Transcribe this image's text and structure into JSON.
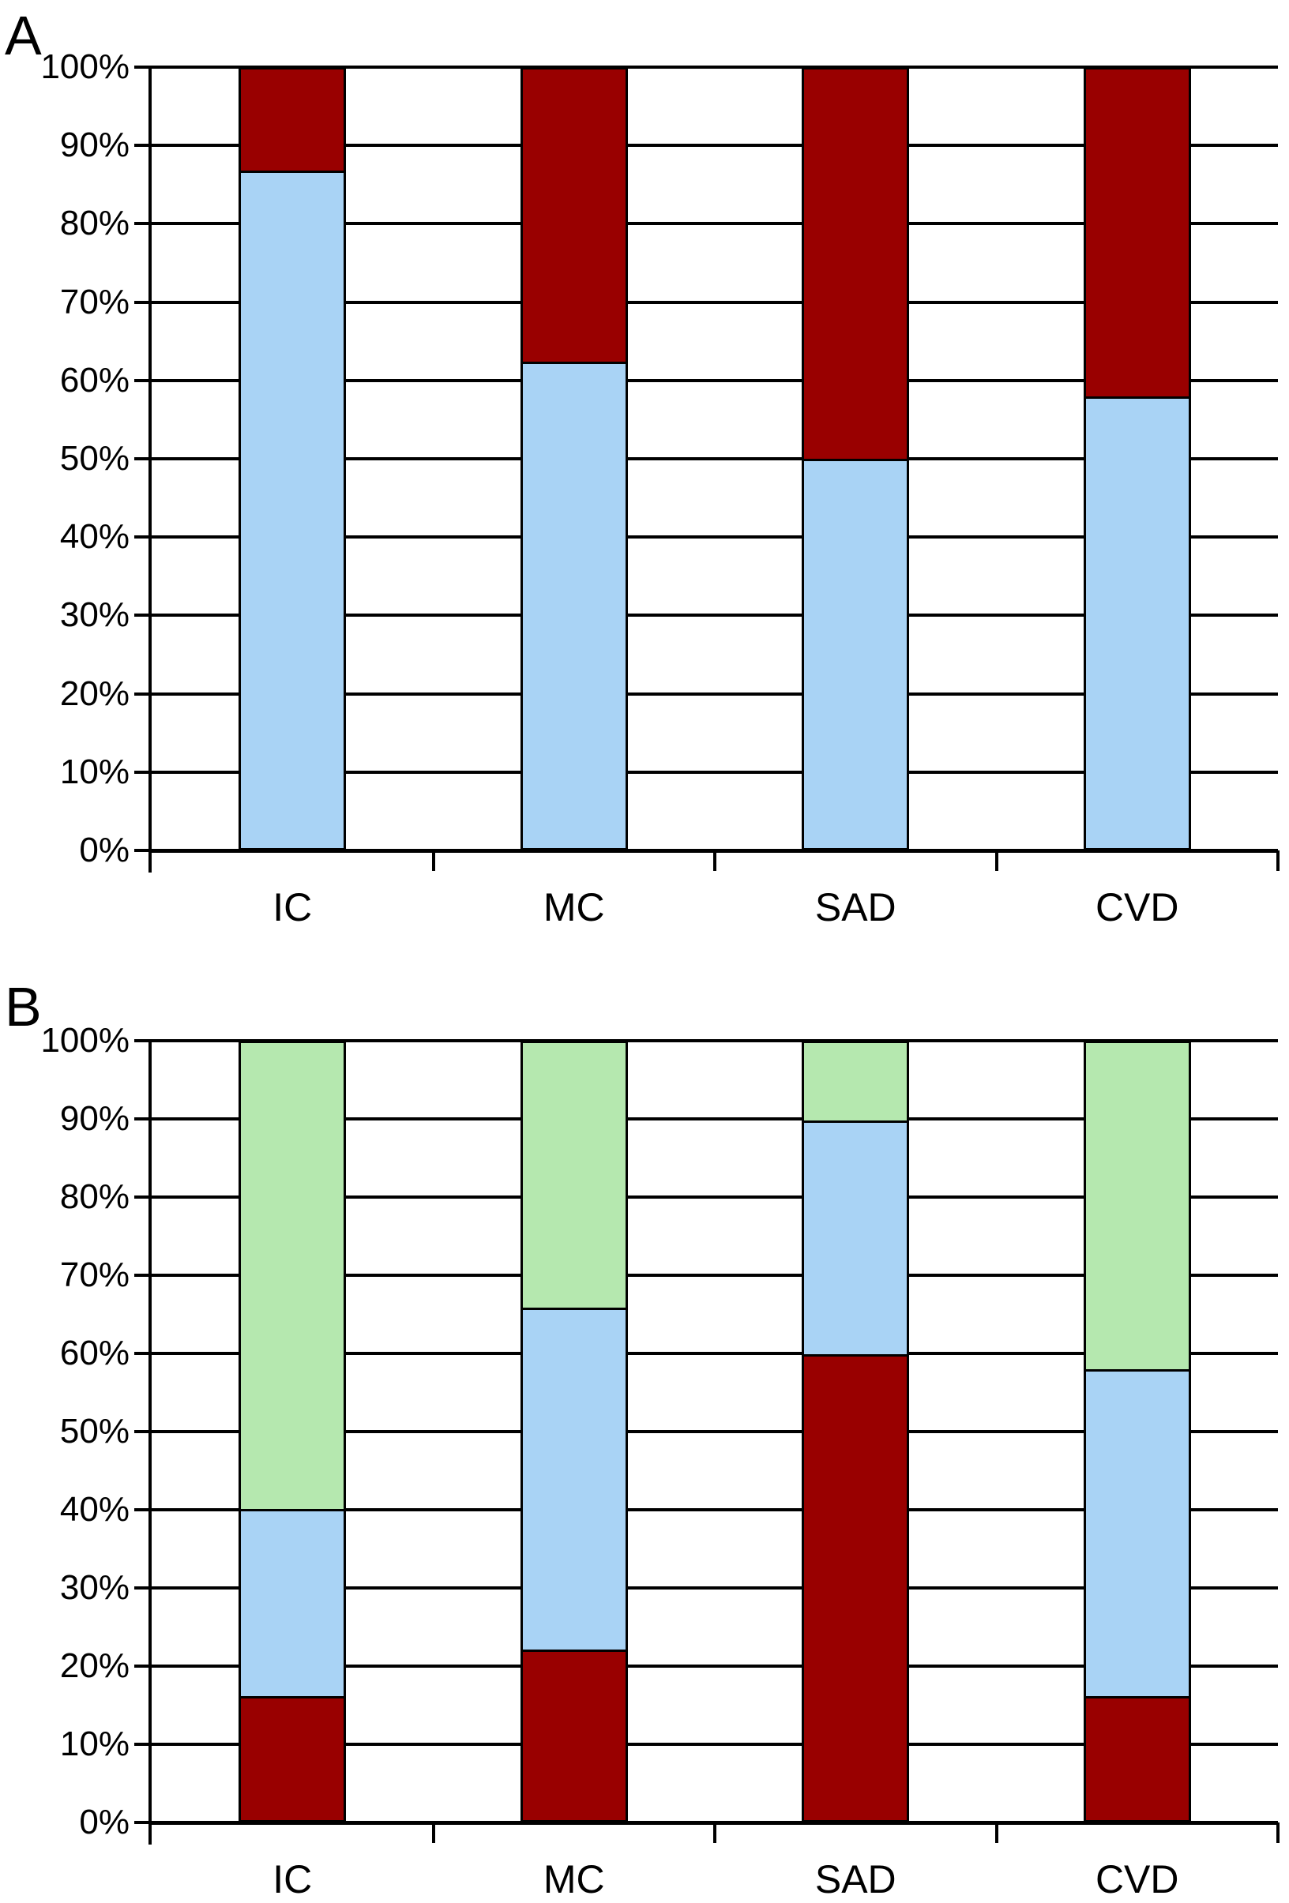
{
  "colors": {
    "dark_red": "#990000",
    "light_blue": "#A9D3F5",
    "light_green": "#B5E8AF",
    "line": "#000000",
    "background": "#FFFFFF"
  },
  "chart_data": [
    {
      "type": "bar",
      "stacked": true,
      "stacked_total": 100,
      "panel_label": "A",
      "categories": [
        "IC",
        "MC",
        "SAD",
        "CVD"
      ],
      "y_tick_labels": [
        "0%",
        "10%",
        "20%",
        "30%",
        "40%",
        "50%",
        "60%",
        "70%",
        "80%",
        "90%",
        "100%"
      ],
      "ylim": [
        0,
        100
      ],
      "grid": true,
      "legend": "none",
      "xlabel": "",
      "ylabel": "",
      "series": [
        {
          "name": "light-blue-segment",
          "color": "#A9D3F5",
          "values": [
            87,
            62.5,
            50,
            58
          ]
        },
        {
          "name": "dark-red-segment",
          "color": "#990000",
          "values": [
            13,
            37.5,
            50,
            42
          ]
        }
      ]
    },
    {
      "type": "bar",
      "stacked": true,
      "stacked_total": 100,
      "panel_label": "B",
      "categories": [
        "IC",
        "MC",
        "SAD",
        "CVD"
      ],
      "y_tick_labels": [
        "0%",
        "10%",
        "20%",
        "30%",
        "40%",
        "50%",
        "60%",
        "70%",
        "80%",
        "90%",
        "100%"
      ],
      "ylim": [
        0,
        100
      ],
      "grid": true,
      "legend": "none",
      "xlabel": "",
      "ylabel": "",
      "series": [
        {
          "name": "dark-red-segment",
          "color": "#990000",
          "values": [
            16,
            22,
            60,
            16
          ]
        },
        {
          "name": "light-blue-segment",
          "color": "#A9D3F5",
          "values": [
            24,
            44,
            30,
            42
          ]
        },
        {
          "name": "light-green-segment",
          "color": "#B5E8AF",
          "values": [
            60,
            34,
            10,
            42
          ]
        }
      ]
    }
  ]
}
